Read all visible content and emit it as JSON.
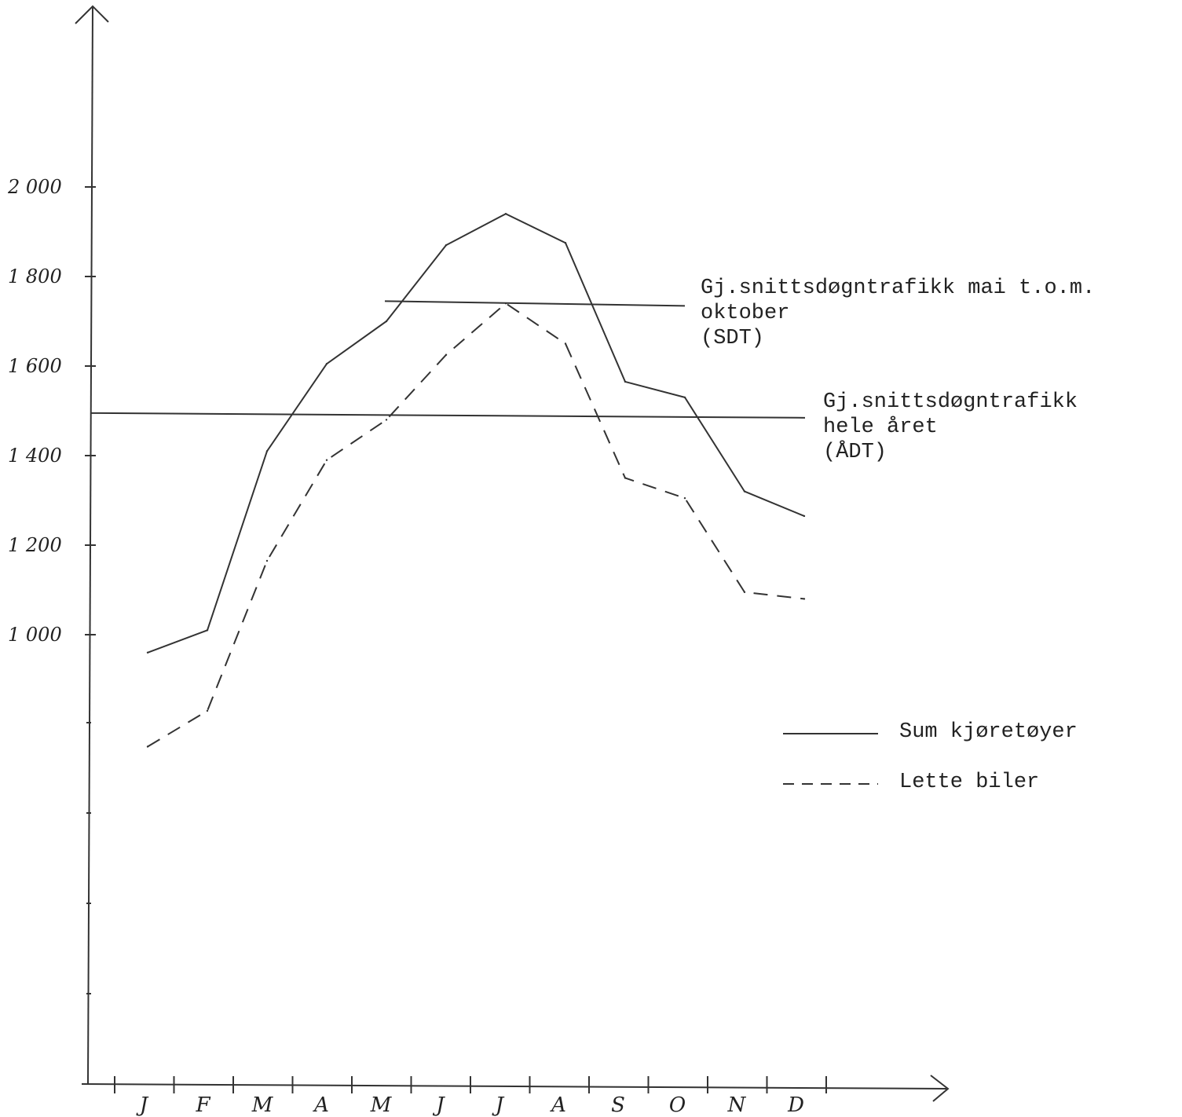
{
  "chart_data": {
    "type": "line",
    "categories": [
      "J",
      "F",
      "M",
      "A",
      "M",
      "J",
      "J",
      "A",
      "S",
      "O",
      "N",
      "D"
    ],
    "y_ticks": [
      "2 000",
      "1 800",
      "1 600",
      "1 400",
      "1 200",
      "1 000"
    ],
    "y_tick_values": [
      2000,
      1800,
      1600,
      1400,
      1200,
      1000
    ],
    "ylim": [
      0,
      2200
    ],
    "grid": false,
    "legend_position": "right",
    "series": [
      {
        "name": "Sum kjøretøyer",
        "style": "solid",
        "values": [
          960,
          1010,
          1410,
          1605,
          1700,
          1870,
          1940,
          1875,
          1565,
          1530,
          1320,
          1265
        ]
      },
      {
        "name": "Lette biler",
        "style": "dashed",
        "values": [
          750,
          830,
          1165,
          1390,
          1480,
          1625,
          1740,
          1650,
          1350,
          1305,
          1095,
          1080
        ]
      }
    ],
    "reference_lines": [
      {
        "id": "sdt",
        "value": 1745,
        "from": "M",
        "lines": [
          "Gj.snittsdøgntrafikk mai t.o.m.",
          "oktober",
          "(SDT)"
        ]
      },
      {
        "id": "adt",
        "value": 1495,
        "from": "axis",
        "lines": [
          "Gj.snittsdøgntrafikk",
          "hele året",
          "(ÅDT)"
        ]
      }
    ],
    "colors": {
      "ink": "#333333",
      "background": "#ffffff"
    }
  }
}
